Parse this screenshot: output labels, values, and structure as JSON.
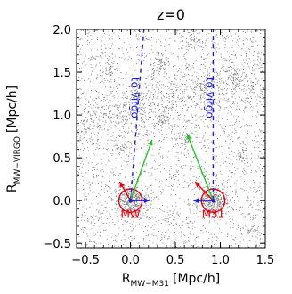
{
  "chart_data": {
    "type": "scatter",
    "title": "z=0",
    "xlabel_main": "R",
    "xlabel_sub": "MW−M31",
    "xlabel_unit": "[Mpc/h]",
    "ylabel_main": "R",
    "ylabel_sub": "MW−VIRGO",
    "ylabel_unit": "[Mpc/h]",
    "xlim": [
      -0.6,
      1.5
    ],
    "ylim": [
      -0.55,
      2.0
    ],
    "x_ticks": [
      -0.5,
      0.0,
      0.5,
      1.0,
      1.5
    ],
    "x_tick_labels": [
      "−0.5",
      "0.0",
      "0.5",
      "1.0",
      "1.5"
    ],
    "y_ticks": [
      -0.5,
      0.0,
      0.5,
      1.0,
      1.5,
      2.0
    ],
    "y_tick_labels": [
      "−0.5",
      "0.0",
      "0.5",
      "1.0",
      "1.5",
      "2.0"
    ],
    "grid": false,
    "background_particles": "dense black dark-matter particle field",
    "halos": [
      {
        "name": "MW",
        "x": 0.0,
        "y": 0.0,
        "radius": 0.13,
        "color": "#e8000b",
        "label": "MW"
      },
      {
        "name": "M31",
        "x": 0.92,
        "y": 0.0,
        "radius": 0.13,
        "color": "#e8000b",
        "label": "M31"
      }
    ],
    "virgo_lines": [
      {
        "x0": 0.0,
        "y0": 0.0,
        "x1": 0.15,
        "y1": 2.0,
        "label": "to virgo",
        "color": "#1c1cd9"
      },
      {
        "x0": 0.92,
        "y0": 0.0,
        "x1": 0.92,
        "y1": 2.0,
        "label": "to virgo",
        "color": "#1c1cd9"
      }
    ],
    "vectors": [
      {
        "halo": "MW",
        "color": "#1c1cd9",
        "dx": 0.21,
        "dy": 0.0
      },
      {
        "halo": "MW",
        "color": "#e8000b",
        "dx": -0.12,
        "dy": 0.22
      },
      {
        "halo": "MW",
        "color": "#22c42a",
        "dx": 0.24,
        "dy": 0.71
      },
      {
        "halo": "M31",
        "color": "#1c1cd9",
        "dx": -0.22,
        "dy": 0.0
      },
      {
        "halo": "M31",
        "color": "#e8000b",
        "dx": -0.2,
        "dy": 0.22
      },
      {
        "halo": "M31",
        "color": "#22c42a",
        "dx": -0.29,
        "dy": 0.78
      }
    ],
    "colors": {
      "blue": "#1c1cd9",
      "red": "#e8000b",
      "green": "#22c42a",
      "points": "#000000"
    }
  }
}
